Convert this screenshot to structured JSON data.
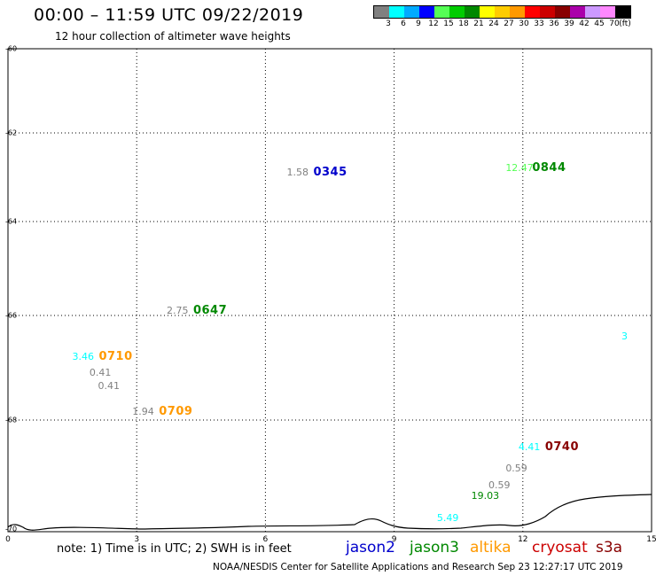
{
  "header": {
    "title": "00:00 – 11:59 UTC 09/22/2019",
    "subtitle": "12 hour collection of altimeter wave heights"
  },
  "colorbar": {
    "colors": [
      "#808080",
      "#00ffff",
      "#00aaff",
      "#0000ff",
      "#55ff55",
      "#00cc00",
      "#008800",
      "#ffff00",
      "#ffcc00",
      "#ff9900",
      "#ff0000",
      "#cc0000",
      "#880000",
      "#aa00aa",
      "#cc99ff",
      "#ff88ff",
      "#000000"
    ],
    "labels": [
      "3",
      "6",
      "9",
      "12",
      "15",
      "18",
      "21",
      "24",
      "27",
      "30",
      "33",
      "36",
      "39",
      "42",
      "45",
      "70",
      "(ft)"
    ]
  },
  "axes": {
    "y_ticks": [
      "-60",
      "-62",
      "-64",
      "-66",
      "-68",
      "-70"
    ],
    "x_ticks": [
      "0",
      "3",
      "6",
      "9",
      "12",
      "15"
    ]
  },
  "observations": [
    {
      "swh": "1.58",
      "time": "0345",
      "swh_color": "#808080",
      "time_color": "#0000cc",
      "lon": 7.2,
      "lat": -62.9
    },
    {
      "swh": "12.47",
      "time": "0844",
      "swh_color": "#55ff55",
      "time_color": "#008800",
      "lon": 12.3,
      "lat": -62.8
    },
    {
      "swh": "2.75",
      "time": "0647",
      "swh_color": "#808080",
      "time_color": "#008800",
      "lon": 4.4,
      "lat": -65.9
    },
    {
      "swh": "3",
      "time": "",
      "swh_color": "#00ffff",
      "time_color": "#00ffff",
      "lon": 15.0,
      "lat": -66.4
    },
    {
      "swh": "3.46",
      "time": "0710",
      "swh_color": "#00ffff",
      "time_color": "#ff9900",
      "lon": 2.2,
      "lat": -66.8
    },
    {
      "swh": "0.41",
      "time": "",
      "swh_color": "#808080",
      "time_color": "#808080",
      "lon": 2.6,
      "lat": -67.1
    },
    {
      "swh": "0.41",
      "time": "",
      "swh_color": "#808080",
      "time_color": "#808080",
      "lon": 2.8,
      "lat": -67.35
    },
    {
      "swh": "1.94",
      "time": "0709",
      "swh_color": "#808080",
      "time_color": "#ff9900",
      "lon": 3.6,
      "lat": -67.85
    },
    {
      "swh": "4.41",
      "time": "0740",
      "swh_color": "#00ffff",
      "time_color": "#880000",
      "lon": 12.6,
      "lat": -68.5
    },
    {
      "swh": "0.59",
      "time": "",
      "swh_color": "#808080",
      "time_color": "#808080",
      "lon": 12.3,
      "lat": -68.9
    },
    {
      "swh": "0.59",
      "time": "",
      "swh_color": "#808080",
      "time_color": "#808080",
      "lon": 11.9,
      "lat": -69.2
    },
    {
      "swh": "19.03",
      "time": "",
      "swh_color": "#008800",
      "time_color": "#008800",
      "lon": 11.5,
      "lat": -69.4
    },
    {
      "swh": "5.49",
      "time": "",
      "swh_color": "#00ffff",
      "time_color": "#00ffff",
      "lon": 10.7,
      "lat": -69.8
    }
  ],
  "note": "note: 1) Time is in UTC; 2) SWH is in feet",
  "legend": [
    {
      "name": "jason2",
      "color": "#0000cc"
    },
    {
      "name": "jason3",
      "color": "#008800"
    },
    {
      "name": "altika",
      "color": "#ff9900"
    },
    {
      "name": "cryosat",
      "color": "#cc0000"
    },
    {
      "name": "s3a",
      "color": "#880000"
    }
  ],
  "footer": "NOAA/NESDIS Center for Satellite Applications and Research    Sep 23 12:27:17 UTC 2019"
}
